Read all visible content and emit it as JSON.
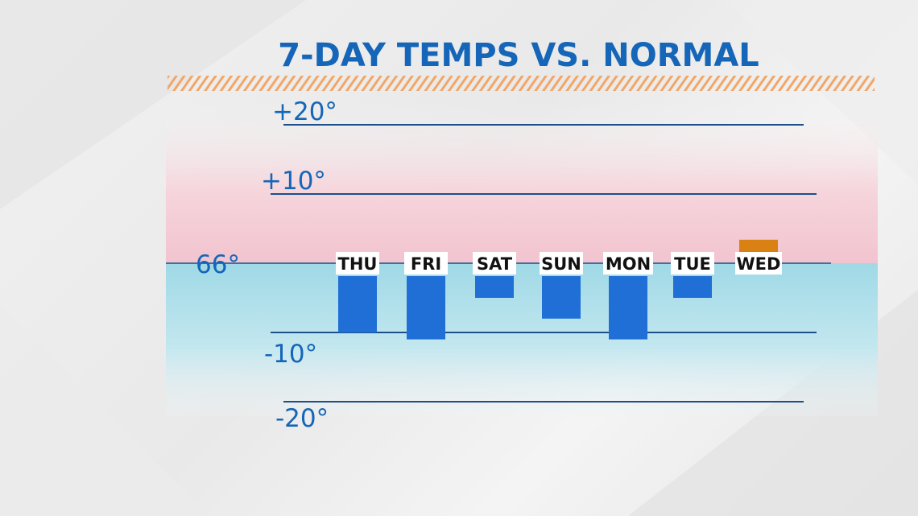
{
  "title": "7-DAY TEMPS VS. NORMAL",
  "colors": {
    "title": "#1565b8",
    "below_normal_bar": "#1f6fd6",
    "above_normal_bar": "#d98213",
    "warm_zone": "#f3c9d1",
    "cool_zone": "#a9dde8",
    "gridline": "#1a4f8a",
    "stripe": "#f2a667"
  },
  "chart_data": {
    "type": "bar",
    "title": "7-DAY TEMPS VS. NORMAL",
    "baseline_label": "66°",
    "categories": [
      "THU",
      "FRI",
      "SAT",
      "SUN",
      "MON",
      "TUE",
      "WED"
    ],
    "values": [
      -10,
      -11,
      -5,
      -8,
      -11,
      -5,
      2
    ],
    "ylim": [
      -20,
      20
    ],
    "y_ticks": [
      {
        "value": 20,
        "label": "+20°"
      },
      {
        "value": 10,
        "label": "+10°"
      },
      {
        "value": -10,
        "label": "-10°"
      },
      {
        "value": -20,
        "label": "-20°"
      }
    ],
    "xlabel": "",
    "ylabel": "",
    "grid": true
  }
}
